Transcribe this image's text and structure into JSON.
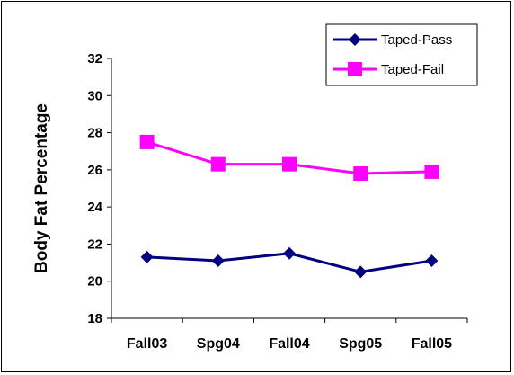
{
  "chart_data": {
    "type": "line",
    "title": "",
    "xlabel": "",
    "ylabel": "Body Fat Percentage",
    "categories": [
      "Fall03",
      "Spg04",
      "Fall04",
      "Spg05",
      "Fall05"
    ],
    "ylim": [
      18,
      32
    ],
    "y_ticks": [
      "18",
      "20",
      "22",
      "24",
      "26",
      "28",
      "30",
      "32"
    ],
    "grid": false,
    "legend_position": "top-right",
    "series": [
      {
        "name": "Taped-Pass",
        "values": [
          21.3,
          21.1,
          21.5,
          20.5,
          21.1
        ],
        "color": "#000080",
        "marker": "diamond"
      },
      {
        "name": "Taped-Fail",
        "values": [
          27.5,
          26.3,
          26.3,
          25.8,
          25.9
        ],
        "color": "#ff00ff",
        "marker": "square"
      }
    ]
  }
}
